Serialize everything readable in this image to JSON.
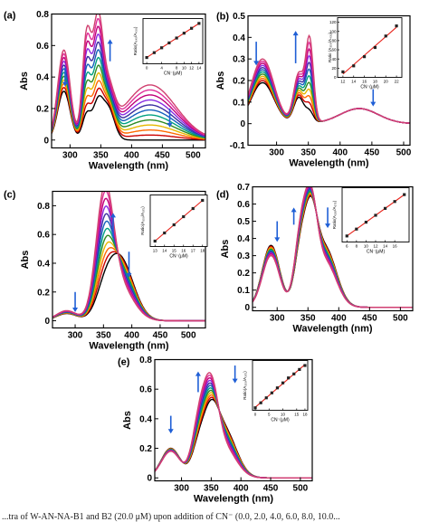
{
  "caption": "...tra of W-AN-NA-B1 and B2 (20.0 μM) upon addition of CN⁻ (0.0, 2.0, 4.0, 6.0, 8.0, 10.0...",
  "colors": {
    "spectra": [
      "#000000",
      "#cc0000",
      "#ff6a00",
      "#e6b800",
      "#2e8b22",
      "#00a080",
      "#1560bd",
      "#3a2fa0",
      "#8a2be2",
      "#c0007a",
      "#e0309a",
      "#d04070"
    ],
    "arrow": "#1f5fd6",
    "fit_line": "#e8231b",
    "marker": "#222222"
  },
  "chart_data": [
    {
      "panel": "(a)",
      "type": "line",
      "xlabel": "Wavelength (nm)",
      "ylabel": "Abs",
      "xlim": [
        270,
        520
      ],
      "ylim": [
        -0.05,
        0.8
      ],
      "xticks": [
        300,
        350,
        400,
        450,
        500
      ],
      "yticks": [
        0.0,
        0.2,
        0.4,
        0.6,
        0.8
      ],
      "peaks": [
        {
          "x": 290,
          "w": 10,
          "a0": 0.31,
          "a1": 0.26
        },
        {
          "x": 327,
          "w": 7,
          "a0": 0.16,
          "a1": 0.48
        },
        {
          "x": 345,
          "w": 8,
          "a0": 0.22,
          "a1": 0.47
        },
        {
          "x": 362,
          "w": 10,
          "a0": 0.2,
          "a1": 0.06
        },
        {
          "x": 430,
          "w": 42,
          "a0": 0.0,
          "a1": 0.35
        }
      ],
      "series_count": 12,
      "arrows": [
        {
          "x": 292,
          "y1": 0.46,
          "y2": 0.34
        },
        {
          "x": 365,
          "y1": 0.5,
          "y2": 0.64
        },
        {
          "x": 462,
          "y1": 0.2,
          "y2": 0.08
        }
      ],
      "inset": {
        "xlabel": "CN⁻(μM)",
        "ylabel": "Ratio(A₃₄₅/A₄₃₀)",
        "x": [
          0,
          2,
          4,
          6,
          8,
          10,
          12,
          14
        ],
        "y": [
          0.9,
          1.6,
          2.3,
          3.0,
          3.7,
          4.4,
          5.1,
          5.8
        ],
        "xlim": [
          -1,
          15
        ],
        "ylim": [
          0,
          6.5
        ],
        "xticks": [
          0,
          4,
          8,
          10,
          12,
          14
        ],
        "yticks": []
      }
    },
    {
      "panel": "(b)",
      "type": "line",
      "xlabel": "Wavelength (nm)",
      "ylabel": "Abs",
      "xlim": [
        255,
        510
      ],
      "ylim": [
        -0.1,
        0.5
      ],
      "xticks": [
        300,
        350,
        400,
        450,
        500
      ],
      "yticks": [
        -0.1,
        0.0,
        0.1,
        0.2,
        0.3,
        0.4,
        0.5
      ],
      "peaks": [
        {
          "x": 278,
          "w": 18,
          "a0": 0.19,
          "a1": 0.11
        },
        {
          "x": 335,
          "w": 8,
          "a0": 0.12,
          "a1": 0.11
        },
        {
          "x": 352,
          "w": 6,
          "a0": 0.05,
          "a1": 0.33
        },
        {
          "x": 430,
          "w": 30,
          "a0": 0.07,
          "a1": 0.0
        }
      ],
      "series_count": 12,
      "arrows": [
        {
          "x": 268,
          "y1": 0.38,
          "y2": 0.27
        },
        {
          "x": 330,
          "y1": 0.28,
          "y2": 0.43
        },
        {
          "x": 452,
          "y1": 0.16,
          "y2": 0.08
        }
      ],
      "inset": {
        "xlabel": "CN⁻(μM)",
        "ylabel": "Ratio (A₃₅₀/A₄₃₀)",
        "x": [
          12,
          14,
          16,
          18,
          20,
          22
        ],
        "y": [
          12,
          25,
          45,
          65,
          90,
          112
        ],
        "xlim": [
          11,
          23
        ],
        "ylim": [
          0,
          130
        ],
        "xticks": [
          12,
          14,
          16,
          18,
          20,
          22
        ],
        "yticks": [
          0,
          20,
          40,
          60,
          80,
          100,
          120
        ]
      }
    },
    {
      "panel": "(c)",
      "type": "line",
      "xlabel": "Wavelength (nm)",
      "ylabel": "Abs",
      "xlim": [
        260,
        530
      ],
      "ylim": [
        -0.05,
        0.9
      ],
      "xticks": [
        300,
        350,
        400,
        450,
        500
      ],
      "yticks": [
        0.0,
        0.2,
        0.4,
        0.6,
        0.8
      ],
      "peaks": [
        {
          "x": 352,
          "w": 15,
          "a0": 0.1,
          "a1": 0.72
        },
        {
          "x": 378,
          "w": 24,
          "a0": 0.44,
          "a1": -0.2
        },
        {
          "x": 285,
          "w": 18,
          "a0": 0.05,
          "a1": 0.02
        }
      ],
      "series_count": 12,
      "arrows": [
        {
          "x": 300,
          "y1": 0.2,
          "y2": 0.06
        },
        {
          "x": 367,
          "y1": 0.58,
          "y2": 0.75
        },
        {
          "x": 395,
          "y1": 0.48,
          "y2": 0.3
        }
      ],
      "inset": {
        "xlabel": "CN⁻(μM)",
        "ylabel": "Ratio(A₃₅₀/A₃₇₅)",
        "x": [
          13,
          14,
          15,
          16,
          17,
          18
        ],
        "y": [
          0.9,
          1.5,
          2.1,
          2.7,
          3.3,
          3.9
        ],
        "xlim": [
          12.5,
          18.5
        ],
        "ylim": [
          0.5,
          4.3
        ],
        "xticks": [
          13,
          14,
          15,
          16,
          17,
          18
        ],
        "yticks": []
      }
    },
    {
      "panel": "(d)",
      "type": "line",
      "xlabel": "Wavelength (nm)",
      "ylabel": "Abs",
      "xlim": [
        260,
        520
      ],
      "ylim": [
        -0.02,
        0.7
      ],
      "xticks": [
        300,
        350,
        400,
        450,
        500
      ],
      "yticks": [
        0.0,
        0.1,
        0.2,
        0.3,
        0.4,
        0.5,
        0.6,
        0.7
      ],
      "peaks": [
        {
          "x": 290,
          "w": 14,
          "a0": 0.36,
          "a1": -0.06
        },
        {
          "x": 338,
          "w": 10,
          "a0": 0.32,
          "a1": 0.08
        },
        {
          "x": 355,
          "w": 10,
          "a0": 0.42,
          "a1": 0.08
        },
        {
          "x": 378,
          "w": 18,
          "a0": 0.34,
          "a1": -0.08
        }
      ],
      "series_count": 12,
      "arrows": [
        {
          "x": 300,
          "y1": 0.5,
          "y2": 0.38
        },
        {
          "x": 327,
          "y1": 0.48,
          "y2": 0.58
        },
        {
          "x": 382,
          "y1": 0.58,
          "y2": 0.46
        }
      ],
      "inset": {
        "xlabel": "CN⁻(μM)",
        "ylabel": "Ratio(A₃₅₀/A₃₇₅)",
        "x": [
          6,
          8,
          10,
          12,
          14,
          16,
          18
        ],
        "y": [
          1.12,
          1.2,
          1.28,
          1.36,
          1.44,
          1.52,
          1.6
        ],
        "xlim": [
          5,
          19
        ],
        "ylim": [
          1.05,
          1.68
        ],
        "xticks": [
          6,
          8,
          10,
          12,
          14,
          16
        ],
        "yticks": []
      }
    },
    {
      "panel": "(e)",
      "type": "line",
      "xlabel": "Wavelength (nm)",
      "ylabel": "Abs",
      "xlim": [
        255,
        520
      ],
      "ylim": [
        -0.02,
        0.8
      ],
      "xticks": [
        300,
        350,
        400,
        450,
        500
      ],
      "yticks": [
        0.0,
        0.2,
        0.4,
        0.6,
        0.8
      ],
      "peaks": [
        {
          "x": 282,
          "w": 16,
          "a0": 0.2,
          "a1": -0.02
        },
        {
          "x": 330,
          "w": 12,
          "a0": 0.22,
          "a1": 0.15
        },
        {
          "x": 350,
          "w": 12,
          "a0": 0.3,
          "a1": 0.2
        },
        {
          "x": 372,
          "w": 20,
          "a0": 0.32,
          "a1": -0.12
        }
      ],
      "series_count": 12,
      "arrows": [
        {
          "x": 282,
          "y1": 0.42,
          "y2": 0.3
        },
        {
          "x": 328,
          "y1": 0.58,
          "y2": 0.72
        },
        {
          "x": 390,
          "y1": 0.76,
          "y2": 0.64
        }
      ],
      "inset": {
        "xlabel": "CN⁻(μM)",
        "ylabel": "Ratio(A₃₅₀/A₃₇₅)",
        "x": [
          0,
          2,
          4,
          6,
          8,
          10,
          12,
          14,
          16,
          18
        ],
        "y": [
          0.95,
          1.05,
          1.15,
          1.25,
          1.35,
          1.45,
          1.55,
          1.63,
          1.72,
          1.8
        ],
        "xlim": [
          -1,
          19
        ],
        "ylim": [
          0.9,
          1.9
        ],
        "xticks": [
          0,
          5,
          10,
          15,
          18
        ],
        "yticks": []
      }
    }
  ]
}
